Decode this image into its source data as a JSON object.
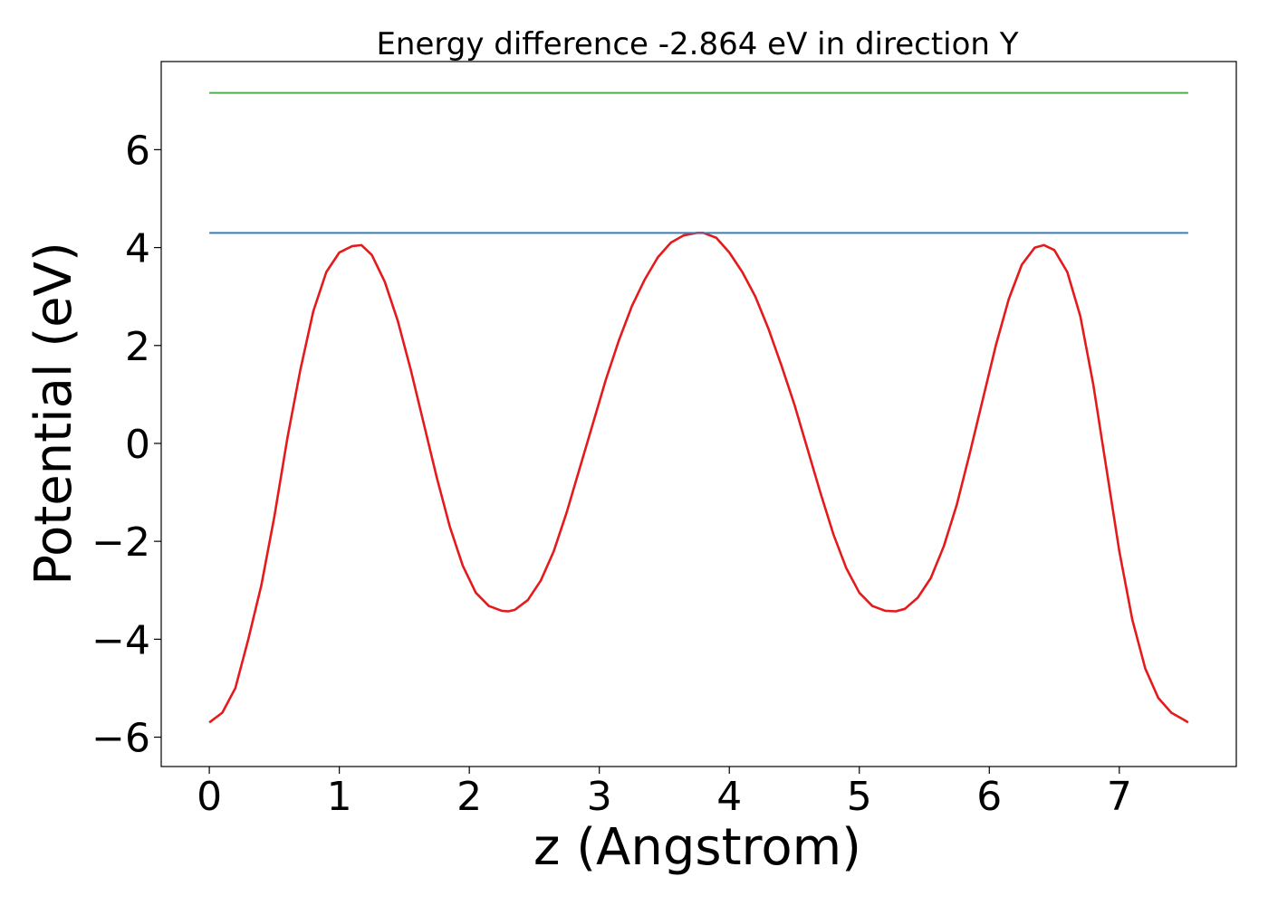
{
  "chart_data": {
    "type": "line",
    "title": "Energy difference -2.864 eV in direction Y",
    "xlabel": "z (Angstrom)",
    "ylabel": "Potential (eV)",
    "xlim": [
      -0.37,
      7.9
    ],
    "ylim": [
      -6.6,
      7.8
    ],
    "xticks": [
      0,
      1,
      2,
      3,
      4,
      5,
      6,
      7
    ],
    "xtick_labels": [
      "0",
      "1",
      "2",
      "3",
      "4",
      "5",
      "6",
      "7"
    ],
    "yticks": [
      -6,
      -4,
      -2,
      0,
      2,
      4,
      6
    ],
    "ytick_labels": [
      "−6",
      "−4",
      "−2",
      "0",
      "2",
      "4",
      "6"
    ],
    "grid": false,
    "series": [
      {
        "color": "#e41a1c",
        "x": [
          0.0,
          0.1,
          0.2,
          0.3,
          0.4,
          0.5,
          0.6,
          0.7,
          0.8,
          0.9,
          1.0,
          1.1,
          1.17,
          1.25,
          1.35,
          1.45,
          1.55,
          1.65,
          1.75,
          1.85,
          1.95,
          2.05,
          2.15,
          2.25,
          2.3,
          2.35,
          2.45,
          2.55,
          2.65,
          2.75,
          2.85,
          2.95,
          3.05,
          3.15,
          3.25,
          3.35,
          3.45,
          3.55,
          3.65,
          3.75,
          3.8,
          3.9,
          4.0,
          4.1,
          4.2,
          4.3,
          4.4,
          4.5,
          4.6,
          4.7,
          4.8,
          4.9,
          5.0,
          5.1,
          5.2,
          5.28,
          5.35,
          5.45,
          5.55,
          5.65,
          5.75,
          5.85,
          5.95,
          6.05,
          6.15,
          6.25,
          6.35,
          6.42,
          6.5,
          6.6,
          6.7,
          6.8,
          6.9,
          7.0,
          7.1,
          7.2,
          7.3,
          7.4,
          7.5,
          7.53
        ],
        "y": [
          -5.7,
          -5.5,
          -5.0,
          -4.0,
          -2.9,
          -1.5,
          0.1,
          1.5,
          2.7,
          3.5,
          3.9,
          4.03,
          4.05,
          3.85,
          3.3,
          2.5,
          1.5,
          0.4,
          -0.7,
          -1.7,
          -2.5,
          -3.05,
          -3.32,
          -3.42,
          -3.43,
          -3.4,
          -3.2,
          -2.8,
          -2.2,
          -1.4,
          -0.5,
          0.4,
          1.3,
          2.1,
          2.8,
          3.35,
          3.8,
          4.1,
          4.25,
          4.3,
          4.3,
          4.2,
          3.9,
          3.5,
          3.0,
          2.35,
          1.6,
          0.8,
          -0.1,
          -1.0,
          -1.85,
          -2.55,
          -3.05,
          -3.32,
          -3.42,
          -3.43,
          -3.38,
          -3.15,
          -2.75,
          -2.1,
          -1.25,
          -0.2,
          0.9,
          2.0,
          2.95,
          3.65,
          4.0,
          4.05,
          3.95,
          3.5,
          2.6,
          1.2,
          -0.5,
          -2.2,
          -3.6,
          -4.6,
          -5.2,
          -5.5,
          -5.65,
          -5.7
        ]
      },
      {
        "color": "#377eb8",
        "x": [
          0.0,
          7.53
        ],
        "y": [
          4.3,
          4.3
        ]
      },
      {
        "color": "#4daf4a",
        "x": [
          0.0,
          7.53
        ],
        "y": [
          7.16,
          7.16
        ]
      }
    ]
  }
}
